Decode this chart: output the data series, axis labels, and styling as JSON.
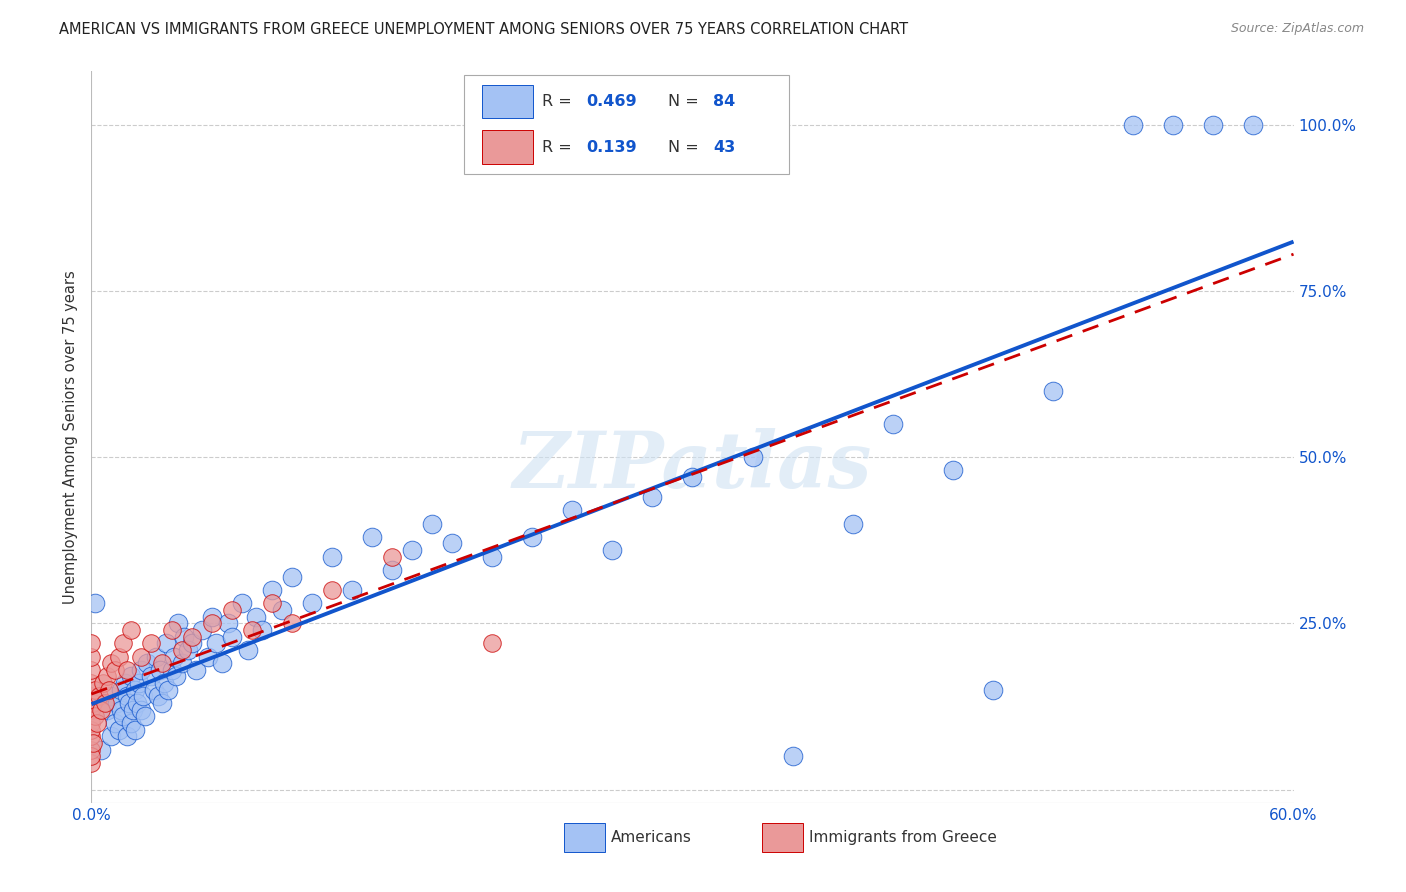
{
  "title": "AMERICAN VS IMMIGRANTS FROM GREECE UNEMPLOYMENT AMONG SENIORS OVER 75 YEARS CORRELATION CHART",
  "source": "Source: ZipAtlas.com",
  "ylabel": "Unemployment Among Seniors over 75 years",
  "xlim": [
    0.0,
    0.6
  ],
  "ylim": [
    -0.02,
    1.08
  ],
  "xticks": [
    0.0,
    0.1,
    0.2,
    0.3,
    0.4,
    0.5,
    0.6
  ],
  "xticklabels": [
    "0.0%",
    "",
    "",
    "",
    "",
    "",
    "60.0%"
  ],
  "yticks_right": [
    0.0,
    0.25,
    0.5,
    0.75,
    1.0
  ],
  "yticklabels_right": [
    "",
    "25.0%",
    "50.0%",
    "75.0%",
    "100.0%"
  ],
  "R_american": 0.469,
  "N_american": 84,
  "R_greece": 0.139,
  "N_greece": 43,
  "american_color": "#a4c2f4",
  "greece_color": "#ea9999",
  "regression_american_color": "#1155cc",
  "regression_greece_color": "#cc0000",
  "american_x": [
    0.002,
    0.005,
    0.008,
    0.01,
    0.01,
    0.012,
    0.013,
    0.014,
    0.015,
    0.015,
    0.016,
    0.017,
    0.018,
    0.018,
    0.019,
    0.02,
    0.02,
    0.021,
    0.022,
    0.022,
    0.023,
    0.024,
    0.025,
    0.025,
    0.026,
    0.027,
    0.028,
    0.03,
    0.031,
    0.032,
    0.033,
    0.034,
    0.035,
    0.036,
    0.037,
    0.038,
    0.04,
    0.041,
    0.042,
    0.043,
    0.045,
    0.046,
    0.048,
    0.05,
    0.052,
    0.055,
    0.058,
    0.06,
    0.062,
    0.065,
    0.068,
    0.07,
    0.075,
    0.078,
    0.082,
    0.085,
    0.09,
    0.095,
    0.1,
    0.11,
    0.12,
    0.13,
    0.14,
    0.15,
    0.16,
    0.17,
    0.18,
    0.2,
    0.22,
    0.24,
    0.26,
    0.28,
    0.3,
    0.33,
    0.35,
    0.38,
    0.4,
    0.43,
    0.45,
    0.48,
    0.52,
    0.54,
    0.56,
    0.58
  ],
  "american_y": [
    0.28,
    0.06,
    0.12,
    0.08,
    0.14,
    0.1,
    0.13,
    0.09,
    0.15,
    0.12,
    0.11,
    0.16,
    0.08,
    0.14,
    0.13,
    0.1,
    0.17,
    0.12,
    0.15,
    0.09,
    0.13,
    0.16,
    0.12,
    0.18,
    0.14,
    0.11,
    0.19,
    0.17,
    0.15,
    0.2,
    0.14,
    0.18,
    0.13,
    0.16,
    0.22,
    0.15,
    0.18,
    0.2,
    0.17,
    0.25,
    0.19,
    0.23,
    0.21,
    0.22,
    0.18,
    0.24,
    0.2,
    0.26,
    0.22,
    0.19,
    0.25,
    0.23,
    0.28,
    0.21,
    0.26,
    0.24,
    0.3,
    0.27,
    0.32,
    0.28,
    0.35,
    0.3,
    0.38,
    0.33,
    0.36,
    0.4,
    0.37,
    0.35,
    0.38,
    0.42,
    0.36,
    0.44,
    0.47,
    0.5,
    0.05,
    0.4,
    0.55,
    0.48,
    0.15,
    0.6,
    1.0,
    1.0,
    1.0,
    1.0
  ],
  "greece_x": [
    0.0,
    0.0,
    0.0,
    0.0,
    0.0,
    0.0,
    0.0,
    0.0,
    0.0,
    0.0,
    0.0,
    0.0,
    0.001,
    0.001,
    0.002,
    0.002,
    0.003,
    0.004,
    0.005,
    0.006,
    0.007,
    0.008,
    0.009,
    0.01,
    0.012,
    0.014,
    0.016,
    0.018,
    0.02,
    0.025,
    0.03,
    0.035,
    0.04,
    0.045,
    0.05,
    0.06,
    0.07,
    0.08,
    0.09,
    0.1,
    0.12,
    0.15,
    0.2
  ],
  "greece_y": [
    0.04,
    0.06,
    0.08,
    0.1,
    0.12,
    0.14,
    0.16,
    0.18,
    0.2,
    0.22,
    0.05,
    0.09,
    0.07,
    0.13,
    0.11,
    0.15,
    0.1,
    0.14,
    0.12,
    0.16,
    0.13,
    0.17,
    0.15,
    0.19,
    0.18,
    0.2,
    0.22,
    0.18,
    0.24,
    0.2,
    0.22,
    0.19,
    0.24,
    0.21,
    0.23,
    0.25,
    0.27,
    0.24,
    0.28,
    0.25,
    0.3,
    0.35,
    0.22
  ]
}
